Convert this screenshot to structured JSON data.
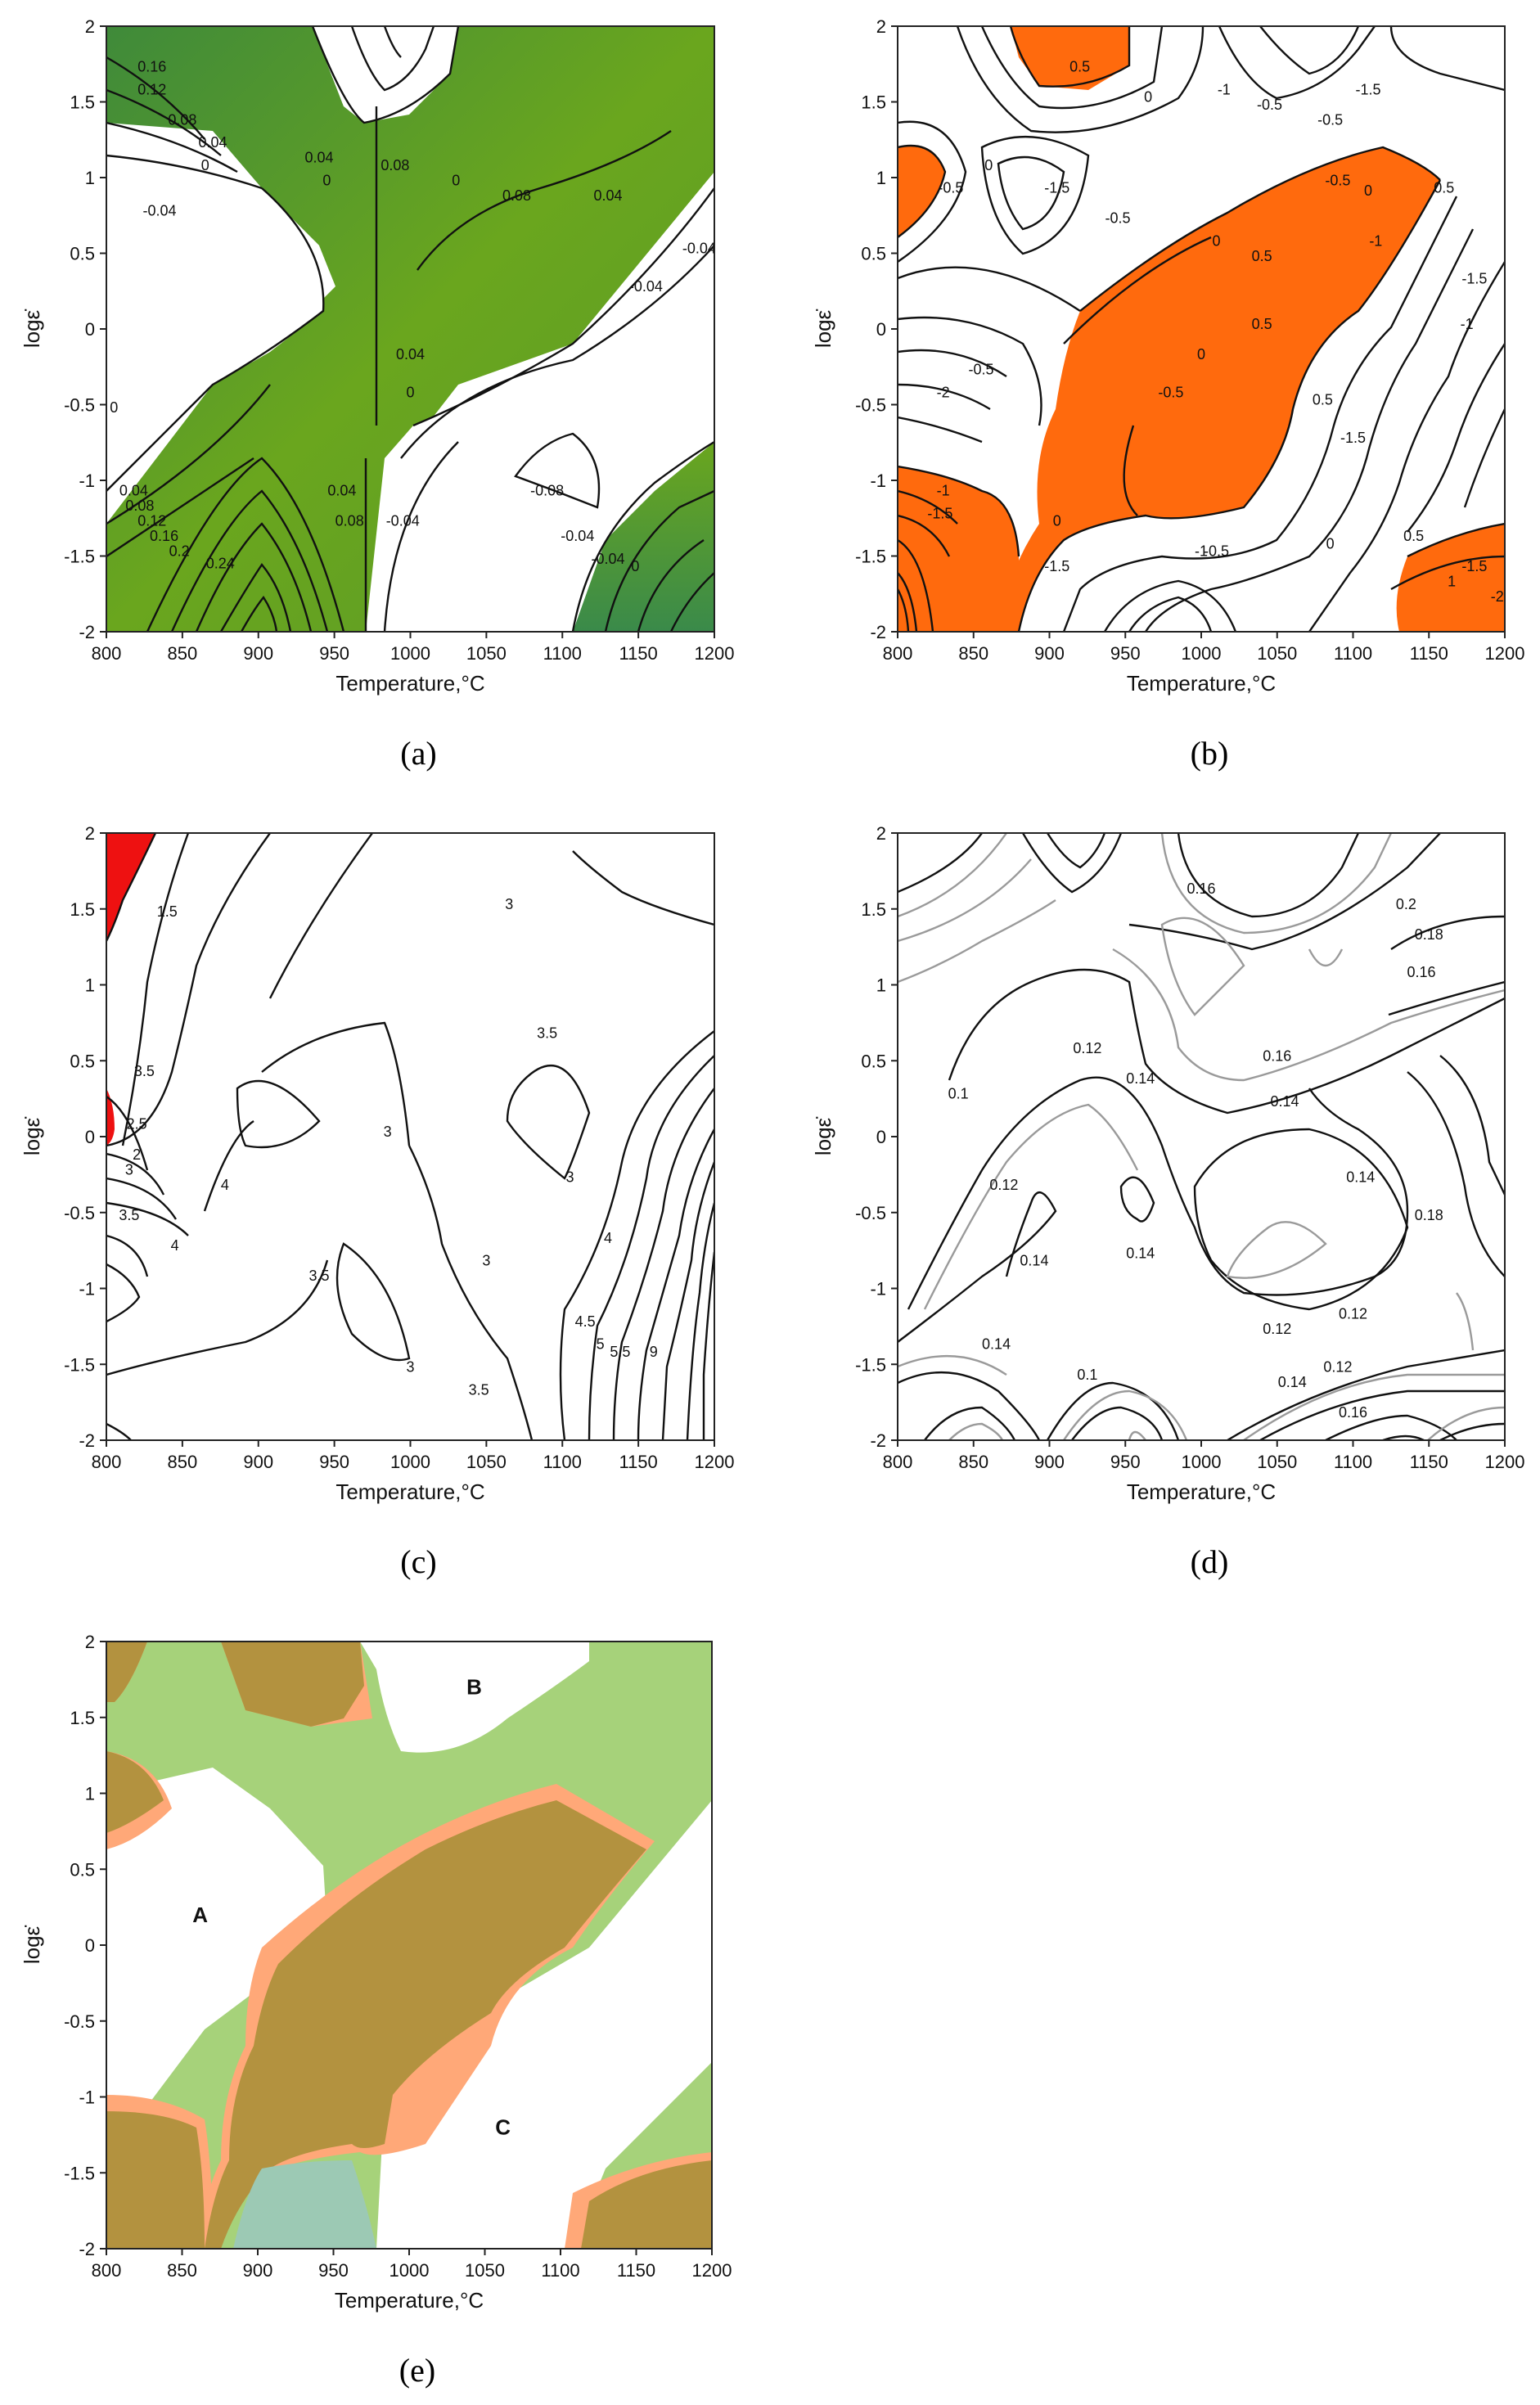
{
  "colors": {
    "green": "#6aa61e",
    "green_dark": "#3f8a3a",
    "orange": "#ff6a0d",
    "red": "#ee1111",
    "overlay_green": "#9fcf6a",
    "overlay_orange": "#ffa878",
    "overlay_overlap": "#b3923f",
    "overlay_teal": "#9cc9b4"
  },
  "chart_data": [
    {
      "id": "a",
      "type": "contour",
      "panel_label": "(a)",
      "xlabel": "Temperature,°C",
      "ylabel": "logε̇",
      "xlim": [
        800,
        1200
      ],
      "ylim": [
        -2,
        2
      ],
      "xticks": [
        "800",
        "850",
        "900",
        "950",
        "1000",
        "1050",
        "1100",
        "1150",
        "1200"
      ],
      "yticks": [
        "-2",
        "-1.5",
        "-1",
        "-0.5",
        "0",
        "0.5",
        "1",
        "1.5",
        "2"
      ],
      "contour_labels": [
        "0.16",
        "0.12",
        "0.08",
        "0.04",
        "0",
        "-0.04",
        "0.04",
        "0",
        "0.08",
        "0.08",
        "0.04",
        "0",
        "0.04",
        "0",
        "-0.04",
        "-0.04",
        "0",
        "0.04",
        "0.08",
        "0.12",
        "0.16",
        "0.2",
        "0.24",
        "0.04",
        "0.08",
        "-0.04",
        "-0.08",
        "-0.04",
        "-0.04",
        "0"
      ],
      "shaded_levels": "positive values (green)",
      "grid": false
    },
    {
      "id": "b",
      "type": "contour",
      "panel_label": "(b)",
      "xlabel": "Temperature,°C",
      "ylabel": "logε̇",
      "xlim": [
        800,
        1200
      ],
      "ylim": [
        -2,
        2
      ],
      "xticks": [
        "800",
        "850",
        "900",
        "950",
        "1000",
        "1050",
        "1100",
        "1150",
        "1200"
      ],
      "yticks": [
        "-2",
        "-1.5",
        "-1",
        "-0.5",
        "0",
        "0.5",
        "1",
        "1.5",
        "2"
      ],
      "contour_labels": [
        "0.5",
        "0",
        "-1",
        "-1.5",
        "-0.5",
        "-0.5",
        "0",
        "-0.5",
        "-1.5",
        "-0.5",
        "0",
        "0.5",
        "-1",
        "-0.5",
        "0",
        "0.5",
        "-1.5",
        "-1",
        "0.5",
        "-0.5",
        "0",
        "0.5",
        "-1.5",
        "-2",
        "-1",
        "-1.5",
        "-0.5",
        "0",
        "-1.5",
        "-1",
        "-0.5",
        "0",
        "0.5",
        "1",
        "-1.5",
        "-2"
      ],
      "shaded_levels": "positive values (orange)",
      "grid": false
    },
    {
      "id": "c",
      "type": "contour",
      "panel_label": "(c)",
      "xlabel": "Temperature,°C",
      "ylabel": "logε̇",
      "xlim": [
        800,
        1200
      ],
      "ylim": [
        -2,
        2
      ],
      "xticks": [
        "800",
        "850",
        "900",
        "950",
        "1000",
        "1050",
        "1100",
        "1150",
        "1200"
      ],
      "yticks": [
        "-2",
        "-1.5",
        "-1",
        "-0.5",
        "0",
        "0.5",
        "1",
        "1.5",
        "2"
      ],
      "contour_labels": [
        "1.5",
        "3",
        "3",
        "3.5",
        "2",
        "2.5",
        "3",
        "3.5",
        "4",
        "4",
        "3.5",
        "3",
        "3.5",
        "3",
        "3.5",
        "4",
        "4.5",
        "5",
        "5.5",
        "9",
        "3"
      ],
      "shaded_levels": "small red region at low temperature",
      "grid": false
    },
    {
      "id": "d",
      "type": "contour",
      "panel_label": "(d)",
      "xlabel": "Temperature,°C",
      "ylabel": "logε̇",
      "xlim": [
        800,
        1200
      ],
      "ylim": [
        -2,
        2
      ],
      "xticks": [
        "800",
        "850",
        "900",
        "950",
        "1000",
        "1050",
        "1100",
        "1150",
        "1200"
      ],
      "yticks": [
        "-2",
        "-1.5",
        "-1",
        "-0.5",
        "0",
        "0.5",
        "1",
        "1.5",
        "2"
      ],
      "contour_labels": [
        "0.16",
        "0.2",
        "0.18",
        "0.16",
        "0.12",
        "0.16",
        "0.14",
        "0.14",
        "0.1",
        "0.12",
        "0.14",
        "0.14",
        "0.12",
        "0.12",
        "0.14",
        "0.12",
        "0.1",
        "0.14",
        "0.16",
        "0.18",
        "0.14"
      ],
      "shaded_levels": "none",
      "grid": false
    },
    {
      "id": "e",
      "type": "region-map",
      "panel_label": "(e)",
      "xlabel": "Temperature,°C",
      "ylabel": "logε̇",
      "xlim": [
        800,
        1200
      ],
      "ylim": [
        -2,
        2
      ],
      "xticks": [
        "800",
        "850",
        "900",
        "950",
        "1000",
        "1050",
        "1100",
        "1150",
        "1200"
      ],
      "yticks": [
        "-2",
        "-1.5",
        "-1",
        "-0.5",
        "0",
        "0.5",
        "1",
        "1.5",
        "2"
      ],
      "regions": [
        {
          "label": "A",
          "x": 862,
          "y": 0.2
        },
        {
          "label": "B",
          "x": 1043,
          "y": 1.7
        },
        {
          "label": "C",
          "x": 1062,
          "y": -1.2
        }
      ],
      "grid": false
    }
  ]
}
